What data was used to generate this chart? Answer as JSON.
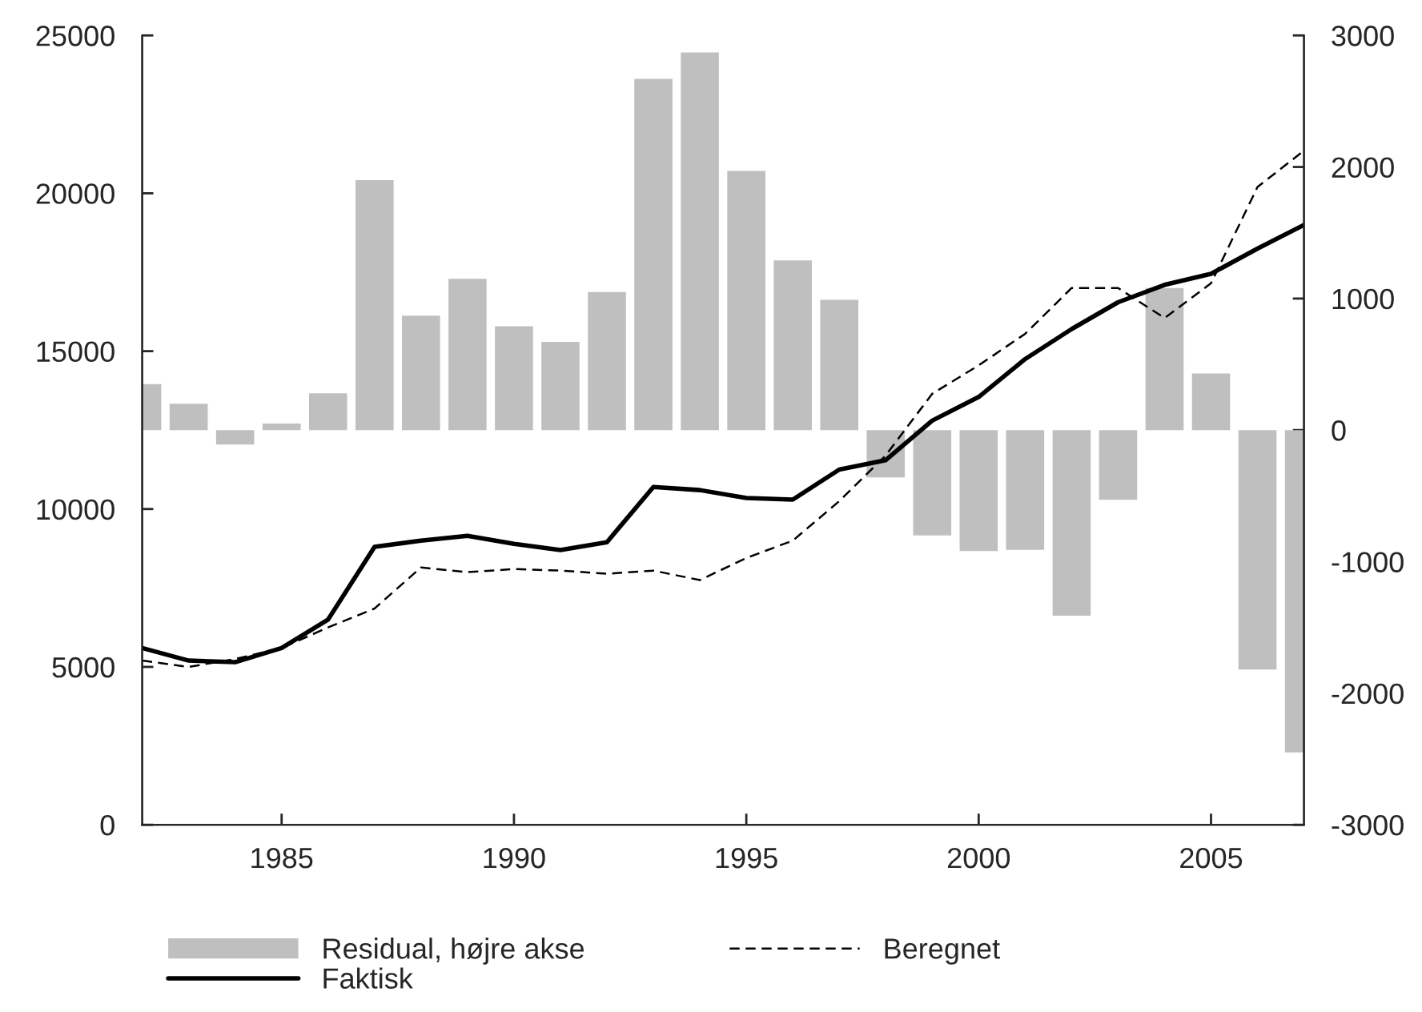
{
  "chart_data": {
    "type": "line",
    "x": [
      1982,
      1983,
      1984,
      1985,
      1986,
      1987,
      1988,
      1989,
      1990,
      1991,
      1992,
      1993,
      1994,
      1995,
      1996,
      1997,
      1998,
      1999,
      2000,
      2001,
      2002,
      2003,
      2004,
      2005,
      2006,
      2007
    ],
    "series": [
      {
        "name": "Residual, højre akse",
        "type": "bar",
        "axis": "y2",
        "color": "#bfbfbf",
        "values": [
          350,
          200,
          -110,
          50,
          280,
          1900,
          870,
          1150,
          790,
          670,
          1050,
          2670,
          2870,
          1970,
          1290,
          990,
          -360,
          -800,
          -920,
          -910,
          -1410,
          -530,
          1080,
          430,
          -1820,
          -2450
        ]
      },
      {
        "name": "Faktisk",
        "color": "#000000",
        "line_style": "solid",
        "values": [
          5600,
          5200,
          5150,
          5600,
          6500,
          8800,
          9000,
          9150,
          8900,
          8700,
          8950,
          10700,
          10600,
          10350,
          10300,
          11250,
          11550,
          12800,
          13550,
          14750,
          15700,
          16550,
          17100,
          17450,
          18250,
          19000
        ]
      },
      {
        "name": "Beregnet",
        "color": "#000000",
        "line_style": "dashed",
        "values": [
          5200,
          5000,
          5250,
          5600,
          6250,
          6850,
          8150,
          8000,
          8100,
          8050,
          7950,
          8050,
          7750,
          8450,
          9000,
          10250,
          11700,
          13650,
          14550,
          15550,
          17000,
          17000,
          16050,
          17150,
          20200,
          21350
        ]
      }
    ],
    "xlim": [
      1982,
      2007
    ],
    "xticks": [
      1985,
      1990,
      1995,
      2000,
      2005
    ],
    "ylim": [
      0,
      25000
    ],
    "yticks": [
      0,
      5000,
      10000,
      15000,
      20000,
      25000
    ],
    "y2lim": [
      -3000,
      3000
    ],
    "y2ticks": [
      -3000,
      -2000,
      -1000,
      0,
      1000,
      2000,
      3000
    ],
    "legend": "bottom",
    "grid": false
  }
}
